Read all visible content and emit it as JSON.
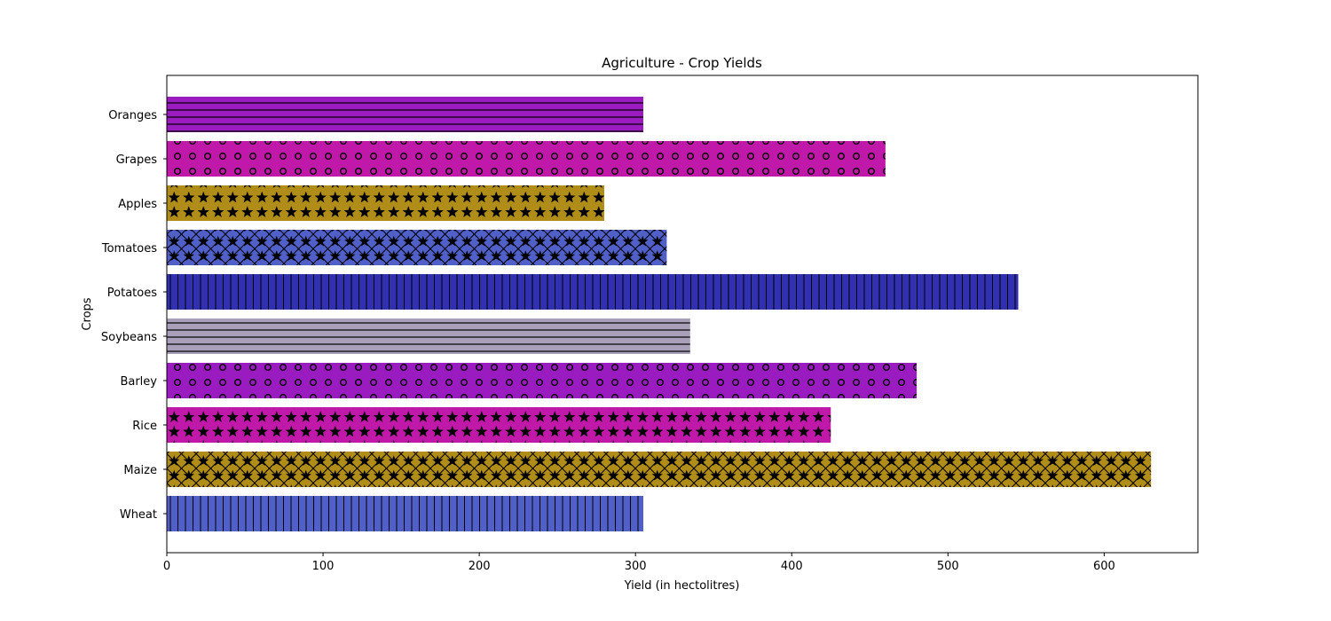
{
  "chart_data": {
    "type": "bar",
    "orientation": "horizontal",
    "title": "Agriculture - Crop Yields",
    "xlabel": "Yield (in hectolitres)",
    "ylabel": "Crops",
    "xlim": [
      0,
      660
    ],
    "xticks": [
      0,
      100,
      200,
      300,
      400,
      500,
      600
    ],
    "grid": false,
    "categories": [
      "Wheat",
      "Maize",
      "Rice",
      "Barley",
      "Soybeans",
      "Potatoes",
      "Tomatoes",
      "Apples",
      "Grapes",
      "Oranges"
    ],
    "values": [
      305,
      630,
      425,
      480,
      335,
      545,
      320,
      280,
      460,
      305
    ],
    "colors": [
      "#5060c8",
      "#b08c18",
      "#c018a8",
      "#9a1cc0",
      "#a8a0b8",
      "#3030b0",
      "#5060c8",
      "#b08c18",
      "#c018a8",
      "#9a1cc0"
    ],
    "hatches": [
      "vertical",
      "cross-star",
      "star",
      "circle",
      "horizontal",
      "vertical",
      "cross-star",
      "star",
      "circle",
      "horizontal"
    ]
  }
}
